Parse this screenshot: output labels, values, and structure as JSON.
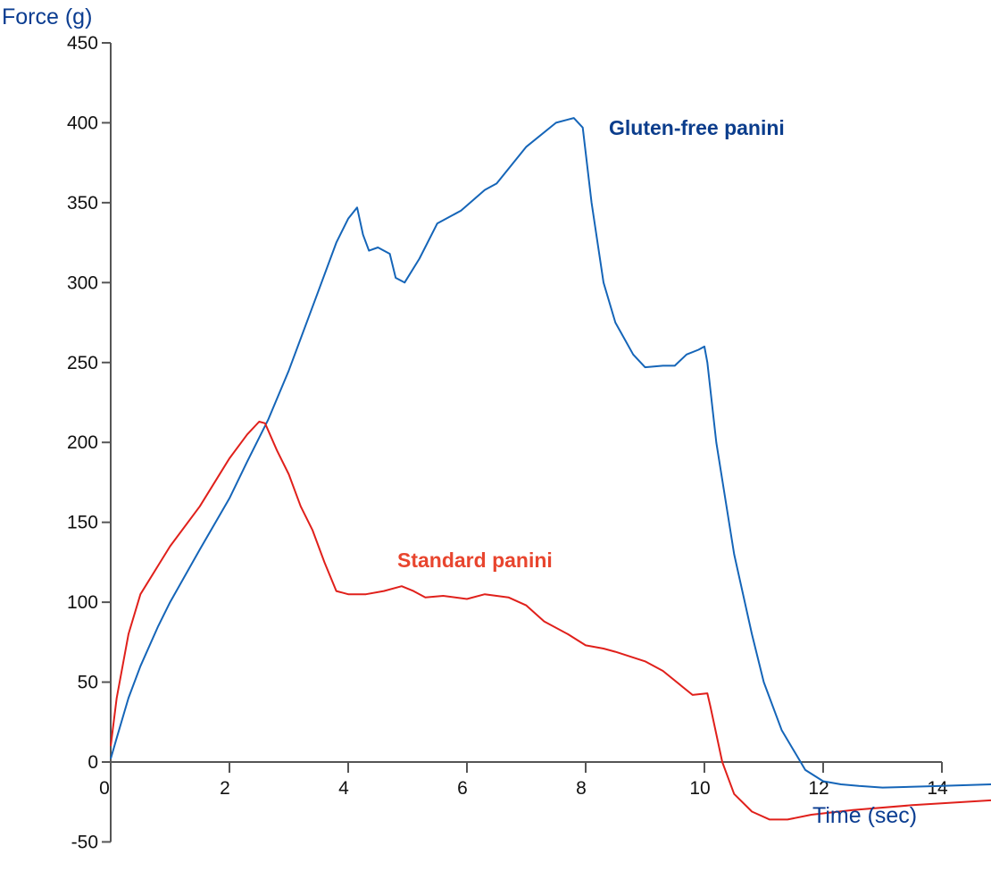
{
  "chart_data": {
    "type": "line",
    "title": "",
    "xlabel": "Time (sec)",
    "ylabel": "Force (g)",
    "xlim": [
      0,
      14
    ],
    "ylim": [
      -50,
      450
    ],
    "xticks": [
      0,
      2,
      4,
      6,
      8,
      10,
      12,
      14
    ],
    "yticks": [
      -50,
      0,
      50,
      100,
      150,
      200,
      250,
      300,
      350,
      400,
      450
    ],
    "grid": false,
    "colors": {
      "axis": "#555555",
      "label": "#0b3d91",
      "tick_label": "#111111"
    },
    "series": [
      {
        "name": "Gluten-free panini",
        "color": "#1565b8",
        "label_color": "#0b3d8c",
        "points": [
          [
            0,
            2
          ],
          [
            0.1,
            15
          ],
          [
            0.3,
            40
          ],
          [
            0.5,
            60
          ],
          [
            0.8,
            85
          ],
          [
            1.0,
            100
          ],
          [
            1.5,
            133
          ],
          [
            2.0,
            165
          ],
          [
            2.3,
            188
          ],
          [
            2.65,
            214
          ],
          [
            3.0,
            245
          ],
          [
            3.5,
            295
          ],
          [
            3.8,
            325
          ],
          [
            4.0,
            340
          ],
          [
            4.15,
            347
          ],
          [
            4.25,
            330
          ],
          [
            4.35,
            320
          ],
          [
            4.5,
            322
          ],
          [
            4.7,
            318
          ],
          [
            4.8,
            303
          ],
          [
            4.95,
            300
          ],
          [
            5.2,
            315
          ],
          [
            5.5,
            337
          ],
          [
            5.9,
            345
          ],
          [
            6.3,
            358
          ],
          [
            6.5,
            362
          ],
          [
            7.0,
            385
          ],
          [
            7.5,
            400
          ],
          [
            7.8,
            403
          ],
          [
            7.95,
            397
          ],
          [
            8.1,
            350
          ],
          [
            8.3,
            300
          ],
          [
            8.5,
            275
          ],
          [
            8.8,
            255
          ],
          [
            9.0,
            247
          ],
          [
            9.3,
            248
          ],
          [
            9.5,
            248
          ],
          [
            9.7,
            255
          ],
          [
            9.9,
            258
          ],
          [
            10.0,
            260
          ],
          [
            10.05,
            250
          ],
          [
            10.2,
            200
          ],
          [
            10.5,
            130
          ],
          [
            10.8,
            80
          ],
          [
            11.0,
            50
          ],
          [
            11.3,
            20
          ],
          [
            11.7,
            -5
          ],
          [
            12.0,
            -12
          ],
          [
            12.3,
            -14
          ],
          [
            12.6,
            -15
          ],
          [
            13.0,
            -16
          ],
          [
            14.0,
            -15
          ],
          [
            14.83,
            -14
          ]
        ]
      },
      {
        "name": "Standard panini",
        "color": "#e0201b",
        "label_color": "#e8452e",
        "points": [
          [
            0,
            10
          ],
          [
            0.1,
            40
          ],
          [
            0.3,
            80
          ],
          [
            0.5,
            105
          ],
          [
            0.8,
            123
          ],
          [
            1.0,
            135
          ],
          [
            1.5,
            160
          ],
          [
            2.0,
            190
          ],
          [
            2.3,
            205
          ],
          [
            2.5,
            213
          ],
          [
            2.6,
            212
          ],
          [
            2.8,
            195
          ],
          [
            3.0,
            180
          ],
          [
            3.2,
            160
          ],
          [
            3.4,
            145
          ],
          [
            3.6,
            125
          ],
          [
            3.8,
            107
          ],
          [
            4.0,
            105
          ],
          [
            4.3,
            105
          ],
          [
            4.6,
            107
          ],
          [
            4.9,
            110
          ],
          [
            5.1,
            107
          ],
          [
            5.3,
            103
          ],
          [
            5.6,
            104
          ],
          [
            6.0,
            102
          ],
          [
            6.3,
            105
          ],
          [
            6.7,
            103
          ],
          [
            7.0,
            98
          ],
          [
            7.3,
            88
          ],
          [
            7.7,
            80
          ],
          [
            8.0,
            73
          ],
          [
            8.3,
            71
          ],
          [
            8.5,
            69
          ],
          [
            9.0,
            63
          ],
          [
            9.3,
            57
          ],
          [
            9.6,
            48
          ],
          [
            9.8,
            42
          ],
          [
            10.05,
            43
          ],
          [
            10.1,
            35
          ],
          [
            10.3,
            0
          ],
          [
            10.5,
            -20
          ],
          [
            10.8,
            -31
          ],
          [
            11.1,
            -36
          ],
          [
            11.4,
            -36
          ],
          [
            11.8,
            -33
          ],
          [
            12.5,
            -30
          ],
          [
            13.5,
            -27
          ],
          [
            14.83,
            -24
          ]
        ]
      }
    ]
  }
}
